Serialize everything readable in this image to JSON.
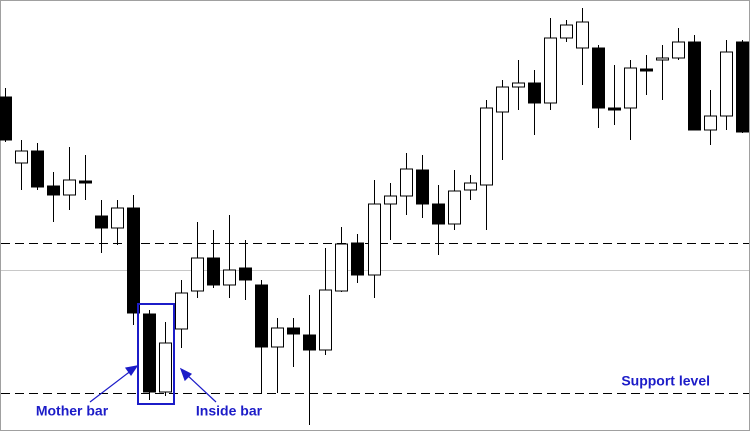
{
  "chart_data": {
    "type": "candlestick",
    "ylim": [
      0,
      431
    ],
    "up_color": "#ffffff",
    "down_color": "#000000",
    "open": [
      334,
      268,
      280,
      245,
      236,
      250,
      215,
      203,
      223,
      117,
      39,
      102,
      140,
      173,
      146,
      163,
      146,
      84,
      103,
      96,
      81,
      140,
      188,
      156,
      227,
      235,
      261,
      227,
      207,
      241,
      246,
      319,
      344,
      348,
      328,
      393,
      383,
      383,
      323,
      323,
      362,
      371,
      373,
      389,
      301,
      315,
      389
    ],
    "high": [
      343,
      291,
      288,
      259,
      284,
      276,
      231,
      231,
      236,
      121,
      109,
      151,
      209,
      201,
      216,
      191,
      151,
      113,
      113,
      136,
      183,
      204,
      197,
      251,
      248,
      278,
      276,
      246,
      261,
      256,
      331,
      351,
      371,
      361,
      413,
      411,
      423,
      386,
      366,
      371,
      376,
      386,
      403,
      396,
      341,
      391,
      391
    ],
    "low": [
      289,
      241,
      241,
      209,
      221,
      231,
      178,
      186,
      106,
      31,
      35,
      83,
      133,
      143,
      133,
      131,
      38,
      38,
      64,
      6,
      76,
      139,
      148,
      133,
      191,
      216,
      213,
      176,
      201,
      231,
      201,
      271,
      321,
      296,
      321,
      389,
      346,
      303,
      306,
      291,
      336,
      331,
      371,
      301,
      286,
      301,
      298
    ],
    "close": [
      291,
      280,
      244,
      236,
      251,
      248,
      203,
      223,
      118,
      39,
      88,
      138,
      173,
      146,
      161,
      151,
      84,
      103,
      97,
      81,
      141,
      187,
      156,
      227,
      235,
      262,
      227,
      207,
      240,
      248,
      323,
      344,
      348,
      328,
      393,
      406,
      409,
      323,
      321,
      363,
      360,
      373,
      389,
      301,
      315,
      379,
      299
    ],
    "levels": [
      {
        "value": 188,
        "style": "dashed",
        "color": "#000000"
      },
      {
        "value": 161,
        "style": "solid",
        "color": "#c8c8c8"
      },
      {
        "value": 38,
        "style": "dashed",
        "color": "#000000"
      }
    ],
    "annotations": {
      "mother_bar": "Mother bar",
      "inside_bar": "Inside bar",
      "support_level": "Support level"
    }
  }
}
